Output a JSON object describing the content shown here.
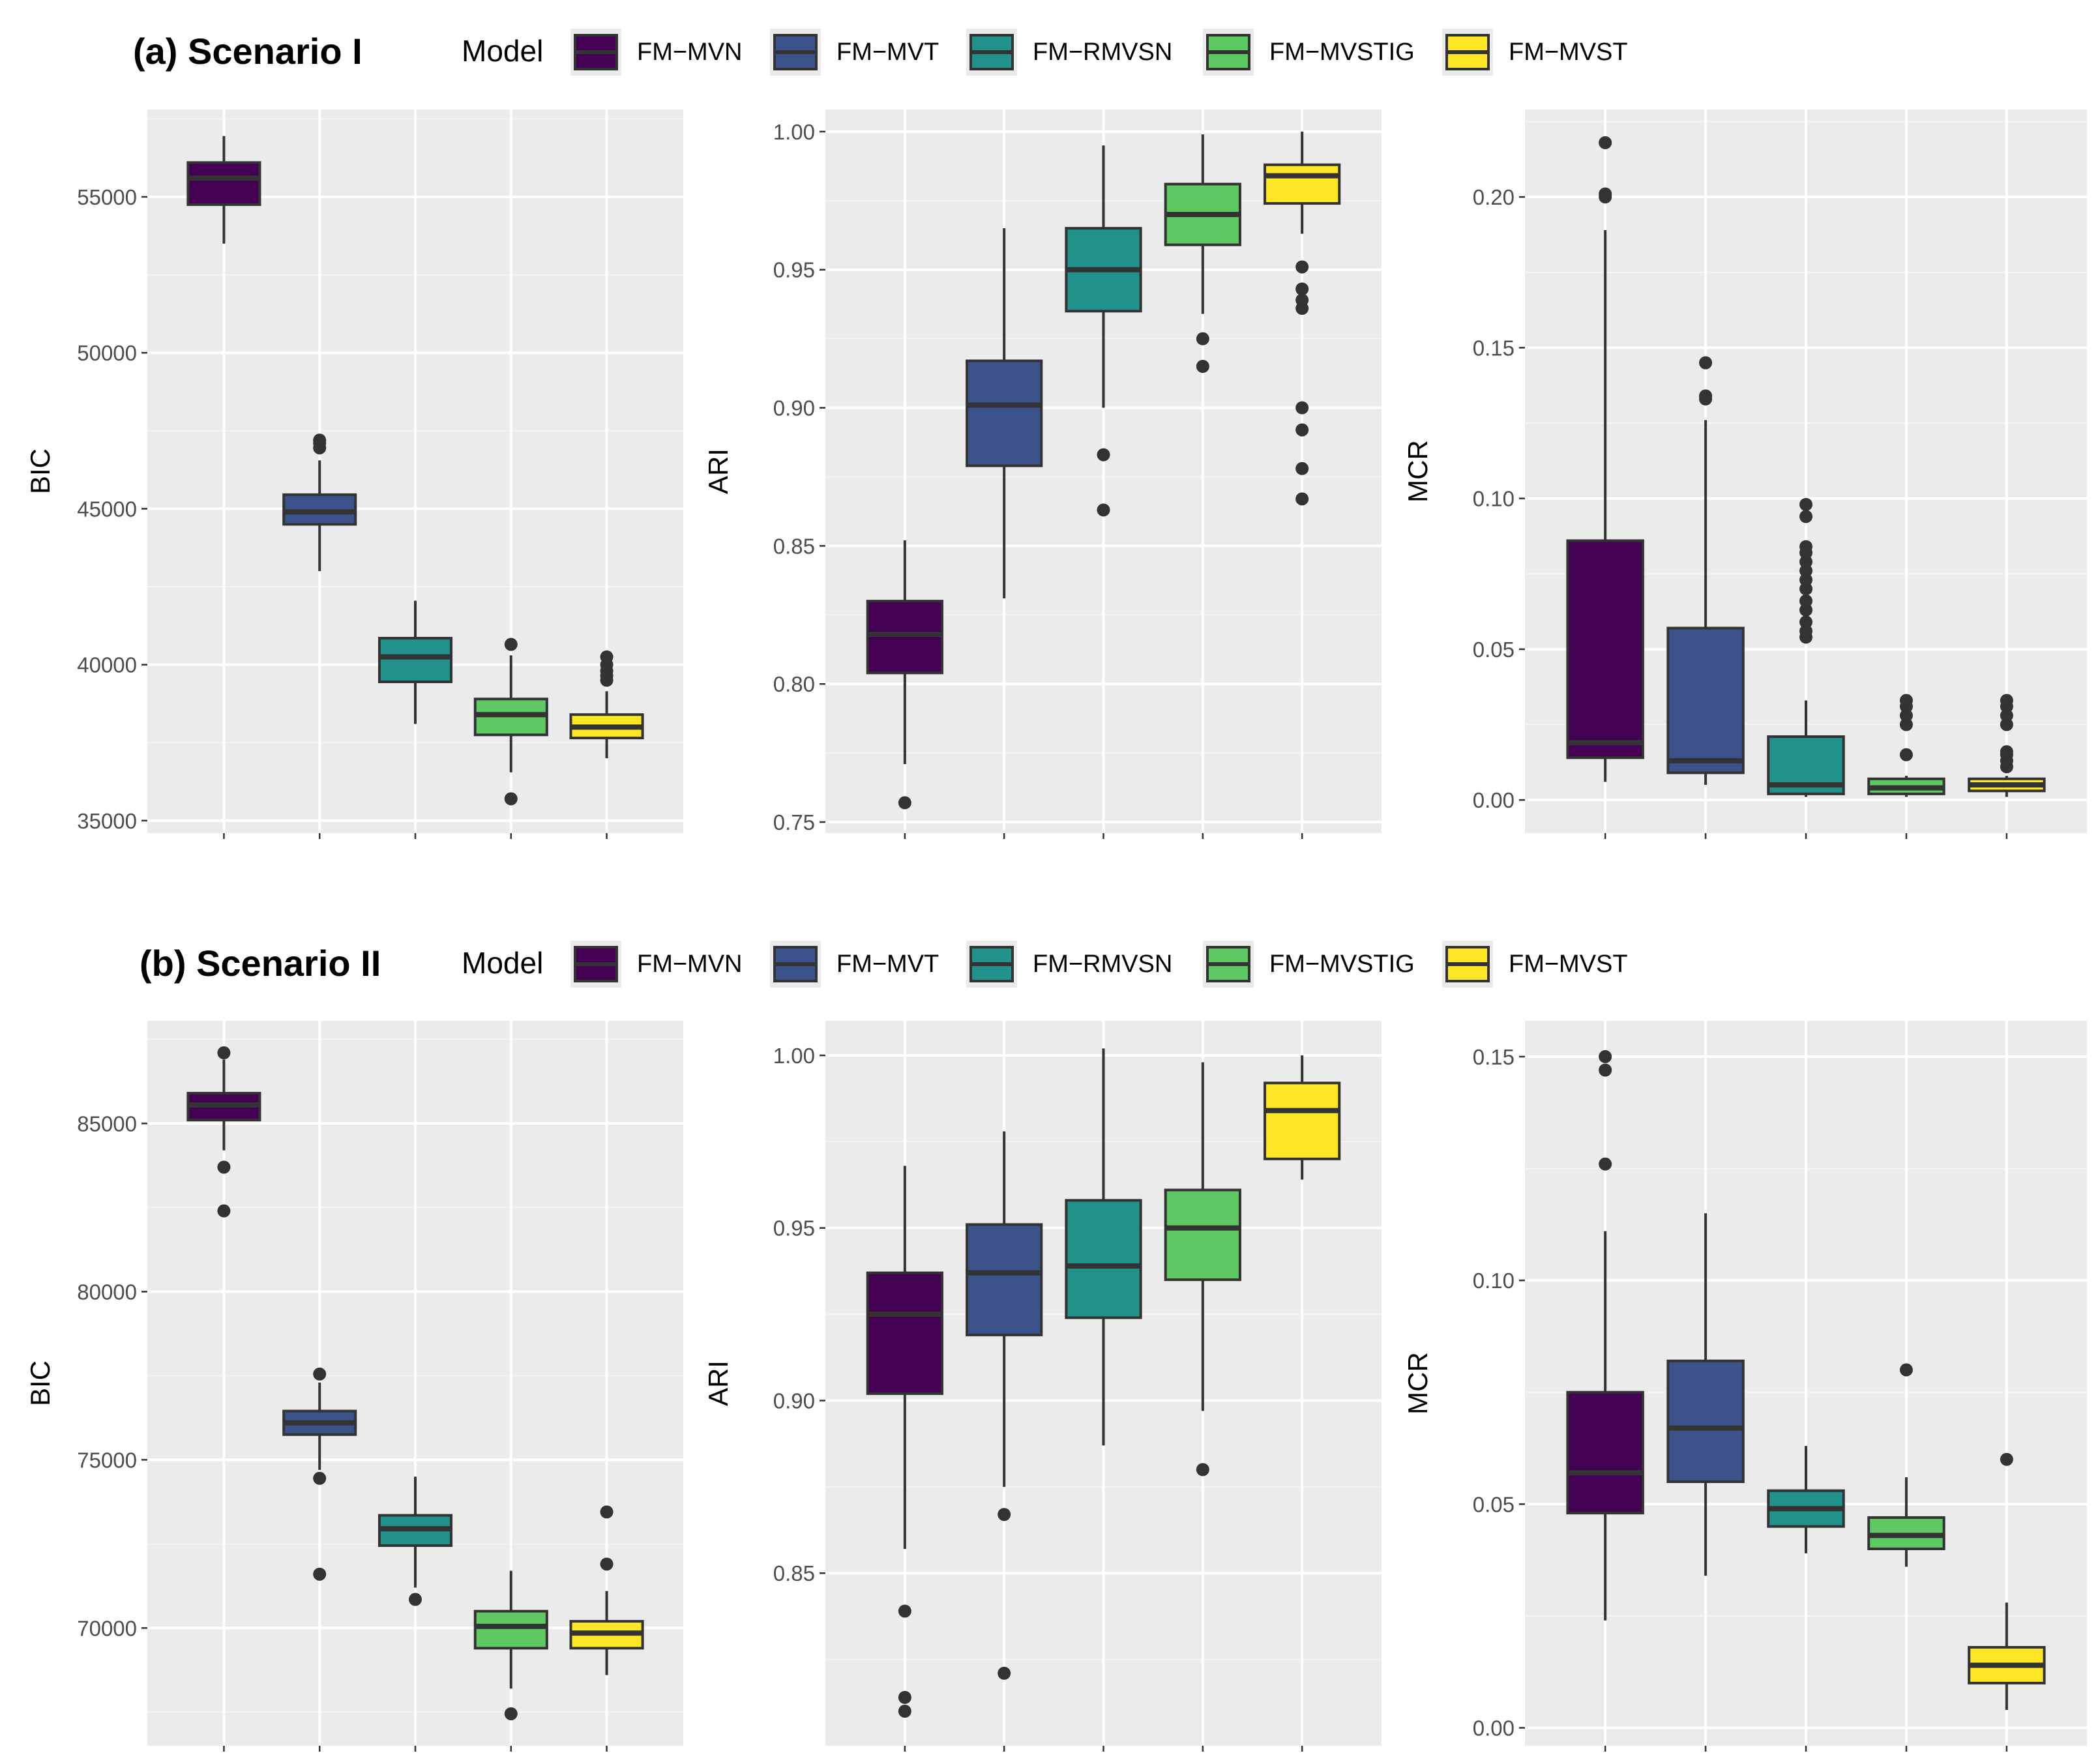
{
  "legend": {
    "title": "Model",
    "items": [
      {
        "name": "FM−MVN",
        "color": "#440154"
      },
      {
        "name": "FM−MVT",
        "color": "#3b528b"
      },
      {
        "name": "FM−RMVSN",
        "color": "#21918c"
      },
      {
        "name": "FM−MVSTIG",
        "color": "#5ec962"
      },
      {
        "name": "FM−MVST",
        "color": "#fde725"
      }
    ]
  },
  "chart_data": [
    {
      "type": "boxplot",
      "row": "(a) Scenario I",
      "metric": "BIC",
      "ylabel": "BIC",
      "ylim": [
        34600,
        57800
      ],
      "yticks": [
        35000,
        40000,
        45000,
        50000,
        55000
      ],
      "tick_labels": [
        "35000",
        "40000",
        "45000",
        "50000",
        "55000"
      ],
      "boxes": [
        {
          "model": "FM−MVN",
          "lower": 53500,
          "q1": 54750,
          "median": 55600,
          "q3": 56100,
          "upper": 56950,
          "outliers": []
        },
        {
          "model": "FM−MVT",
          "lower": 43000,
          "q1": 44500,
          "median": 44900,
          "q3": 45450,
          "upper": 46550,
          "outliers": [
            46950,
            47100,
            47200
          ]
        },
        {
          "model": "FM−RMVSN",
          "lower": 38100,
          "q1": 39450,
          "median": 40250,
          "q3": 40850,
          "upper": 42050,
          "outliers": []
        },
        {
          "model": "FM−MVSTIG",
          "lower": 36550,
          "q1": 37750,
          "median": 38400,
          "q3": 38900,
          "upper": 40300,
          "outliers": [
            35700,
            40650
          ]
        },
        {
          "model": "FM−MVST",
          "lower": 37000,
          "q1": 37650,
          "median": 38000,
          "q3": 38400,
          "upper": 39150,
          "outliers": [
            39500,
            39650,
            39800,
            40000,
            40250
          ]
        }
      ]
    },
    {
      "type": "boxplot",
      "row": "(a) Scenario I",
      "metric": "ARI",
      "ylabel": "ARI",
      "ylim": [
        0.746,
        1.008
      ],
      "yticks": [
        0.75,
        0.8,
        0.85,
        0.9,
        0.95,
        1.0
      ],
      "tick_labels": [
        "0.75",
        "0.80",
        "0.85",
        "0.90",
        "0.95",
        "1.00"
      ],
      "boxes": [
        {
          "model": "FM−MVN",
          "lower": 0.771,
          "q1": 0.804,
          "median": 0.818,
          "q3": 0.83,
          "upper": 0.852,
          "outliers": [
            0.757
          ]
        },
        {
          "model": "FM−MVT",
          "lower": 0.831,
          "q1": 0.879,
          "median": 0.901,
          "q3": 0.917,
          "upper": 0.965,
          "outliers": []
        },
        {
          "model": "FM−RMVSN",
          "lower": 0.9,
          "q1": 0.935,
          "median": 0.95,
          "q3": 0.965,
          "upper": 0.995,
          "outliers": [
            0.863,
            0.883
          ]
        },
        {
          "model": "FM−MVSTIG",
          "lower": 0.934,
          "q1": 0.959,
          "median": 0.97,
          "q3": 0.981,
          "upper": 0.999,
          "outliers": [
            0.915,
            0.925
          ]
        },
        {
          "model": "FM−MVST",
          "lower": 0.963,
          "q1": 0.974,
          "median": 0.984,
          "q3": 0.988,
          "upper": 1.0,
          "outliers": [
            0.867,
            0.878,
            0.892,
            0.9,
            0.936,
            0.939,
            0.943,
            0.951
          ]
        }
      ]
    },
    {
      "type": "boxplot",
      "row": "(a) Scenario I",
      "metric": "MCR",
      "ylabel": "MCR",
      "ylim": [
        -0.011,
        0.229
      ],
      "yticks": [
        0.0,
        0.05,
        0.1,
        0.15,
        0.2
      ],
      "tick_labels": [
        "0.00",
        "0.05",
        "0.10",
        "0.15",
        "0.20"
      ],
      "boxes": [
        {
          "model": "FM−MVN",
          "lower": 0.006,
          "q1": 0.014,
          "median": 0.019,
          "q3": 0.086,
          "upper": 0.189,
          "outliers": [
            0.2,
            0.201,
            0.218
          ]
        },
        {
          "model": "FM−MVT",
          "lower": 0.005,
          "q1": 0.009,
          "median": 0.013,
          "q3": 0.057,
          "upper": 0.126,
          "outliers": [
            0.133,
            0.134,
            0.145
          ]
        },
        {
          "model": "FM−RMVSN",
          "lower": 0.001,
          "q1": 0.002,
          "median": 0.005,
          "q3": 0.021,
          "upper": 0.033,
          "outliers": [
            0.054,
            0.056,
            0.059,
            0.063,
            0.066,
            0.07,
            0.073,
            0.076,
            0.079,
            0.082,
            0.084,
            0.094,
            0.098
          ]
        },
        {
          "model": "FM−MVSTIG",
          "lower": 0.001,
          "q1": 0.002,
          "median": 0.004,
          "q3": 0.007,
          "upper": 0.008,
          "outliers": [
            0.015,
            0.025,
            0.028,
            0.031,
            0.033
          ]
        },
        {
          "model": "FM−MVST",
          "lower": 0.001,
          "q1": 0.003,
          "median": 0.005,
          "q3": 0.007,
          "upper": 0.008,
          "outliers": [
            0.011,
            0.013,
            0.015,
            0.016,
            0.025,
            0.028,
            0.031,
            0.033
          ]
        }
      ]
    },
    {
      "type": "boxplot",
      "row": "(b) Scenario II",
      "metric": "BIC",
      "ylabel": "BIC",
      "ylim": [
        66500,
        88050
      ],
      "yticks": [
        70000,
        75000,
        80000,
        85000
      ],
      "tick_labels": [
        "70000",
        "75000",
        "80000",
        "85000"
      ],
      "boxes": [
        {
          "model": "FM−MVN",
          "lower": 84200,
          "q1": 85100,
          "median": 85550,
          "q3": 85900,
          "upper": 86900,
          "outliers": [
            82400,
            83700,
            87100
          ]
        },
        {
          "model": "FM−MVT",
          "lower": 74700,
          "q1": 75750,
          "median": 76100,
          "q3": 76450,
          "upper": 77300,
          "outliers": [
            71600,
            74450,
            77550
          ]
        },
        {
          "model": "FM−RMVSN",
          "lower": 71200,
          "q1": 72450,
          "median": 72950,
          "q3": 73350,
          "upper": 74500,
          "outliers": [
            70850
          ]
        },
        {
          "model": "FM−MVSTIG",
          "lower": 68200,
          "q1": 69400,
          "median": 70050,
          "q3": 70500,
          "upper": 71700,
          "outliers": [
            67450
          ]
        },
        {
          "model": "FM−MVST",
          "lower": 68600,
          "q1": 69400,
          "median": 69850,
          "q3": 70200,
          "upper": 71100,
          "outliers": [
            71900,
            73450
          ]
        }
      ]
    },
    {
      "type": "boxplot",
      "row": "(b) Scenario II",
      "metric": "ARI",
      "ylabel": "ARI",
      "ylim": [
        0.8,
        1.01
      ],
      "yticks": [
        0.85,
        0.9,
        0.95,
        1.0
      ],
      "tick_labels": [
        "0.85",
        "0.90",
        "0.95",
        "1.00"
      ],
      "boxes": [
        {
          "model": "FM−MVN",
          "lower": 0.857,
          "q1": 0.902,
          "median": 0.925,
          "q3": 0.937,
          "upper": 0.968,
          "outliers": [
            0.81,
            0.814,
            0.839
          ]
        },
        {
          "model": "FM−MVT",
          "lower": 0.875,
          "q1": 0.919,
          "median": 0.937,
          "q3": 0.951,
          "upper": 0.978,
          "outliers": [
            0.821,
            0.867
          ]
        },
        {
          "model": "FM−RMVSN",
          "lower": 0.887,
          "q1": 0.924,
          "median": 0.939,
          "q3": 0.958,
          "upper": 1.002,
          "outliers": []
        },
        {
          "model": "FM−MVSTIG",
          "lower": 0.897,
          "q1": 0.935,
          "median": 0.95,
          "q3": 0.961,
          "upper": 0.998,
          "outliers": [
            0.88
          ]
        },
        {
          "model": "FM−MVST",
          "lower": 0.964,
          "q1": 0.97,
          "median": 0.984,
          "q3": 0.992,
          "upper": 1.0,
          "outliers": []
        }
      ]
    },
    {
      "type": "boxplot",
      "row": "(b) Scenario II",
      "metric": "MCR",
      "ylabel": "MCR",
      "ylim": [
        -0.004,
        0.158
      ],
      "yticks": [
        0.0,
        0.05,
        0.1,
        0.15
      ],
      "tick_labels": [
        "0.00",
        "0.05",
        "0.10",
        "0.15"
      ],
      "boxes": [
        {
          "model": "FM−MVN",
          "lower": 0.024,
          "q1": 0.048,
          "median": 0.057,
          "q3": 0.075,
          "upper": 0.111,
          "outliers": [
            0.126,
            0.147,
            0.15
          ]
        },
        {
          "model": "FM−MVT",
          "lower": 0.034,
          "q1": 0.055,
          "median": 0.067,
          "q3": 0.082,
          "upper": 0.115,
          "outliers": []
        },
        {
          "model": "FM−RMVSN",
          "lower": 0.039,
          "q1": 0.045,
          "median": 0.049,
          "q3": 0.053,
          "upper": 0.063,
          "outliers": []
        },
        {
          "model": "FM−MVSTIG",
          "lower": 0.036,
          "q1": 0.04,
          "median": 0.043,
          "q3": 0.047,
          "upper": 0.056,
          "outliers": [
            0.08
          ]
        },
        {
          "model": "FM−MVST",
          "lower": 0.004,
          "q1": 0.01,
          "median": 0.014,
          "q3": 0.018,
          "upper": 0.028,
          "outliers": [
            0.06
          ]
        }
      ]
    }
  ]
}
